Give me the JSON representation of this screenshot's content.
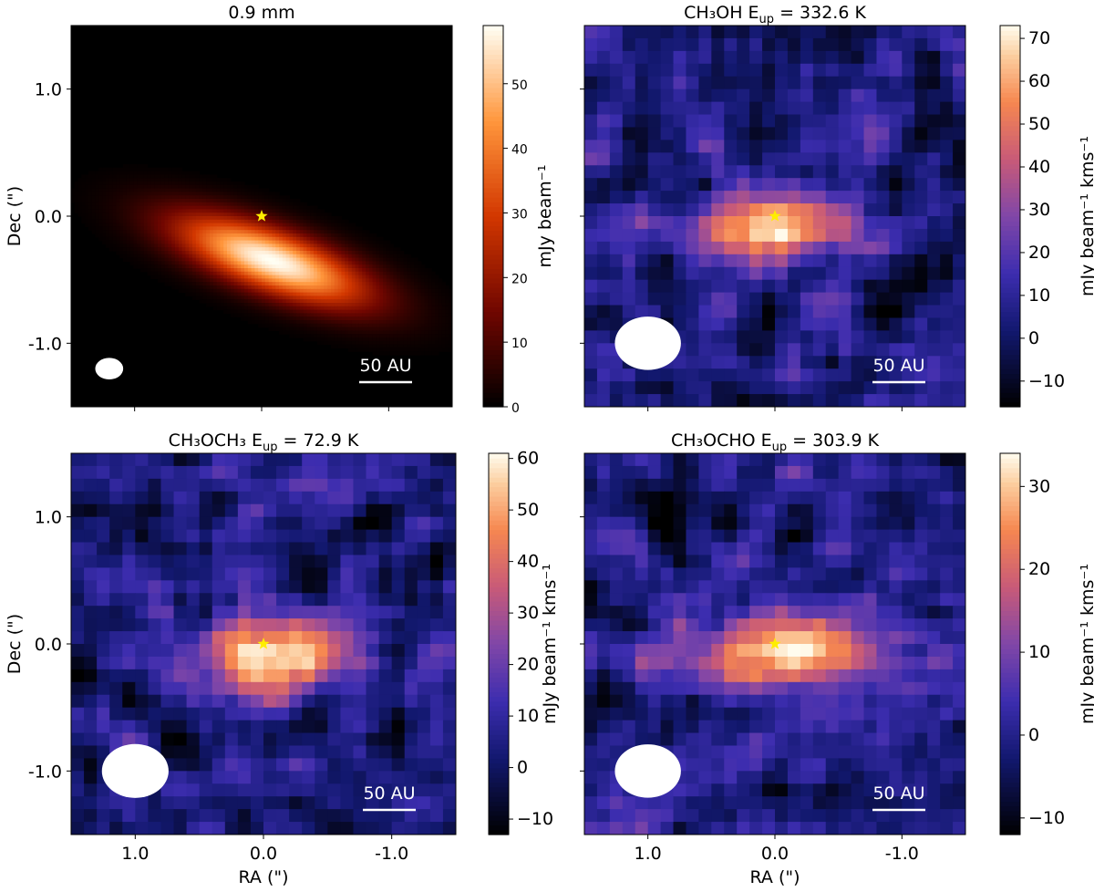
{
  "chart_data": [
    {
      "type": "heatmap",
      "title": "0.9 mm",
      "ylabel": "Dec (\")",
      "xlabel": "",
      "colorbar_label": "mJy beam⁻¹",
      "colormap": "gist_heat",
      "colorbar_ticks": [
        0,
        10,
        20,
        30,
        40,
        50
      ],
      "clim": [
        0,
        59
      ],
      "xlim": [
        1.5,
        -1.5
      ],
      "ylim": [
        -1.5,
        1.5
      ],
      "yticks": [
        "1.0",
        "0.0",
        "-1.0"
      ],
      "emission": [
        {
          "ra": -0.08,
          "dec": -0.35,
          "peak": 59,
          "major": 0.55,
          "minor": 0.17,
          "pa_deg": 20
        }
      ],
      "star": {
        "ra": 0.0,
        "dec": 0.0
      },
      "beam": {
        "ra": 1.2,
        "dec": -1.2,
        "major": 0.22,
        "minor": 0.17
      },
      "scalebar_label": "50 AU"
    },
    {
      "type": "heatmap",
      "title": "CH₃OH E",
      "title_sub": "up",
      "title_value": " = 332.6 K",
      "ylabel": "",
      "xlabel": "",
      "colorbar_label": "mJy beam⁻¹ kms⁻¹",
      "colormap": "cmr-fusion",
      "colorbar_ticks": [
        -10,
        0,
        10,
        20,
        30,
        40,
        50,
        60,
        70
      ],
      "clim": [
        -16,
        73
      ],
      "xlim": [
        1.5,
        -1.5
      ],
      "ylim": [
        -1.5,
        1.5
      ],
      "emission": [
        {
          "ra": 0.0,
          "dec": -0.1,
          "peak": 73,
          "major": 0.38,
          "minor": 0.2,
          "pa_deg": 0
        }
      ],
      "star": {
        "ra": 0.0,
        "dec": 0.0
      },
      "beam": {
        "ra": 1.0,
        "dec": -1.0,
        "major": 0.52,
        "minor": 0.42
      },
      "scalebar_label": "50 AU"
    },
    {
      "type": "heatmap",
      "title": "CH₃OCH₃ E",
      "title_sub": "up",
      "title_value": " = 72.9 K",
      "ylabel": "Dec (\")",
      "xlabel": "RA (\")",
      "colorbar_label": "",
      "colormap": "cmr-fusion",
      "colorbar_ticks": [
        -10,
        0,
        10,
        20,
        30,
        40,
        50,
        60
      ],
      "clim": [
        -13,
        61
      ],
      "xlim": [
        1.5,
        -1.5
      ],
      "ylim": [
        -1.5,
        1.5
      ],
      "xticks": [
        "1.0",
        "0.0",
        "-1.0"
      ],
      "yticks": [
        "1.0",
        "0.0",
        "-1.0"
      ],
      "emission": [
        {
          "ra": -0.15,
          "dec": -0.1,
          "peak": 61,
          "major": 0.38,
          "minor": 0.22,
          "pa_deg": 0
        }
      ],
      "star": {
        "ra": 0.0,
        "dec": 0.0
      },
      "beam": {
        "ra": 1.0,
        "dec": -1.0,
        "major": 0.52,
        "minor": 0.42
      },
      "scalebar_label": "50 AU"
    },
    {
      "type": "heatmap",
      "title": "CH₃OCHO E",
      "title_sub": "up",
      "title_value": " = 303.9 K",
      "ylabel": "mJy beam⁻¹ kms⁻¹",
      "xlabel": "RA (\")",
      "colorbar_label": "mJy beam⁻¹ kms⁻¹",
      "colormap": "cmr-fusion",
      "colorbar_ticks": [
        -10,
        0,
        10,
        20,
        30
      ],
      "clim": [
        -12,
        34
      ],
      "xlim": [
        1.5,
        -1.5
      ],
      "ylim": [
        -1.5,
        1.5
      ],
      "xticks": [
        "1.0",
        "0.0",
        "-1.0"
      ],
      "emission": [
        {
          "ra": -0.1,
          "dec": -0.05,
          "peak": 34,
          "major": 0.55,
          "minor": 0.2,
          "pa_deg": 0
        }
      ],
      "star": {
        "ra": 0.0,
        "dec": 0.0
      },
      "beam": {
        "ra": 1.0,
        "dec": -1.0,
        "major": 0.52,
        "minor": 0.42
      },
      "scalebar_label": "50 AU"
    }
  ]
}
